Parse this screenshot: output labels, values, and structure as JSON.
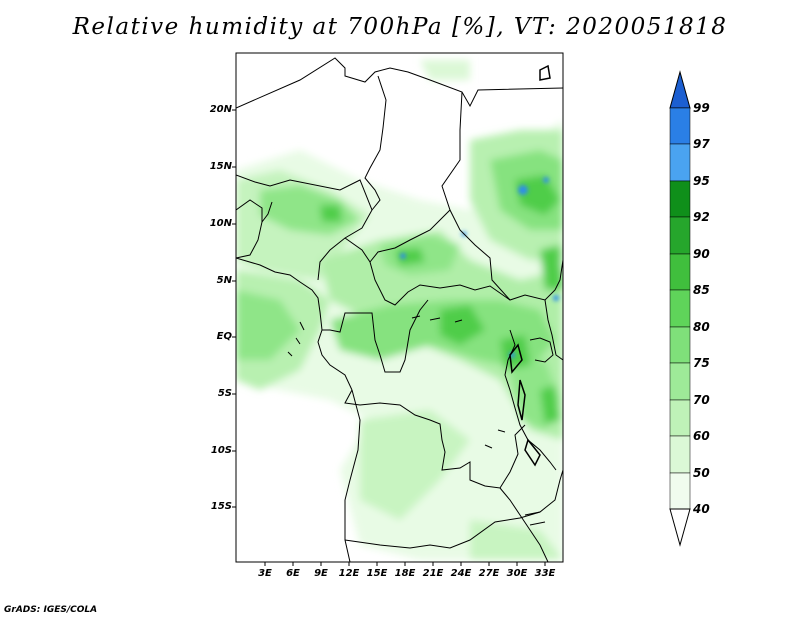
{
  "title": "Relative humidity at 700hPa [%], VT: 2020051818",
  "footer": "GrADS: IGES/COLA",
  "lat_labels": [
    "20N",
    "15N",
    "10N",
    "5N",
    "EQ",
    "5S",
    "10S",
    "15S"
  ],
  "lon_labels": [
    "3E",
    "6E",
    "9E",
    "12E",
    "15E",
    "18E",
    "21E",
    "24E",
    "27E",
    "30E",
    "33E"
  ],
  "colorbar": {
    "levels": [
      "99",
      "97",
      "95",
      "92",
      "90",
      "85",
      "80",
      "75",
      "70",
      "60",
      "50",
      "40"
    ],
    "colors": [
      "#1c5fd1",
      "#2a7fe6",
      "#4aa3f0",
      "#0f8f1a",
      "#26a62c",
      "#40bf3d",
      "#5fd45a",
      "#7fe07a",
      "#9eea98",
      "#bff2b8",
      "#dbf8d6",
      "#f0fcee"
    ]
  },
  "colors": {
    "land_background": "#ffffff",
    "border_lines": "#000000"
  }
}
